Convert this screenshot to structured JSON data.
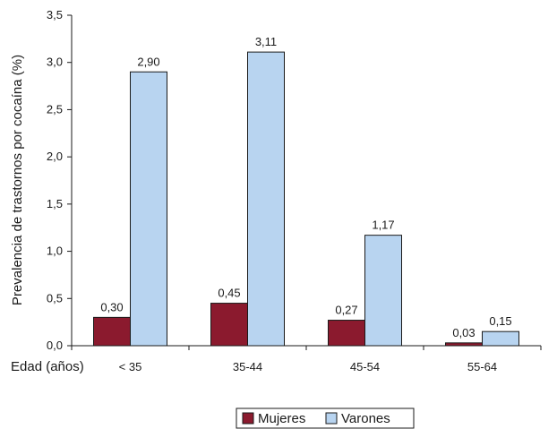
{
  "chart_data": {
    "type": "bar",
    "ylabel": "Prevalencia de trastornos por cocaína (%)",
    "xlabel": "Edad (años)",
    "categories": [
      "< 35",
      "35-44",
      "45-54",
      "55-64"
    ],
    "series": [
      {
        "name": "Mujeres",
        "values": [
          0.3,
          0.45,
          0.27,
          0.03
        ],
        "labels": [
          "0,30",
          "0,45",
          "0,27",
          "0,03"
        ],
        "color": "#8b1a2e"
      },
      {
        "name": "Varones",
        "values": [
          2.9,
          3.11,
          1.17,
          0.15
        ],
        "labels": [
          "2,90",
          "3,11",
          "1,17",
          "0,15"
        ],
        "color": "#b8d4f0"
      }
    ],
    "ylim": [
      0,
      3.5
    ],
    "yticks": [
      0,
      0.5,
      1.0,
      1.5,
      2.0,
      2.5,
      3.0,
      3.5
    ],
    "ytick_labels": [
      "0,0",
      "0,5",
      "1,0",
      "1,5",
      "2,0",
      "2,5",
      "3,0",
      "3,5"
    ],
    "grid": false,
    "legend_position": "bottom-center"
  }
}
